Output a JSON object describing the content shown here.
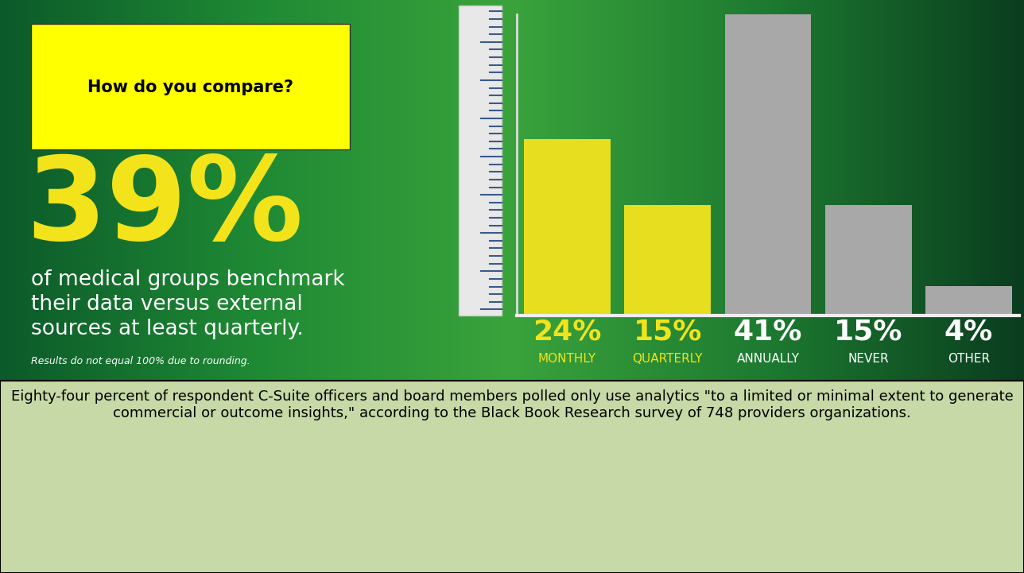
{
  "chart_data": {
    "type": "bar",
    "title": "How do you compare?",
    "headline": "39%",
    "headline_text": "of medical groups benchmark their data versus external sources at least quarterly.",
    "note": "Results do not equal 100% due to rounding.",
    "caption": "Eighty-four percent of respondent C-Suite officers and board members polled only use analytics \"to a limited or minimal extent to generate commercial or outcome insights,\" according to the Black Book Research survey of 748 providers organizations.",
    "categories": [
      "MONTHLY",
      "QUARTERLY",
      "ANNUALLY",
      "NEVER",
      "OTHER"
    ],
    "values": [
      24,
      15,
      41,
      15,
      4
    ],
    "value_labels": [
      "24%",
      "15%",
      "41%",
      "15%",
      "4%"
    ],
    "colors": [
      "#e6de1e",
      "#e6de1e",
      "#a8a8a8",
      "#a8a8a8",
      "#a8a8a8"
    ],
    "ylim": [
      0,
      41
    ],
    "yticks": [],
    "data_labels": true,
    "tick_labels": "x"
  }
}
